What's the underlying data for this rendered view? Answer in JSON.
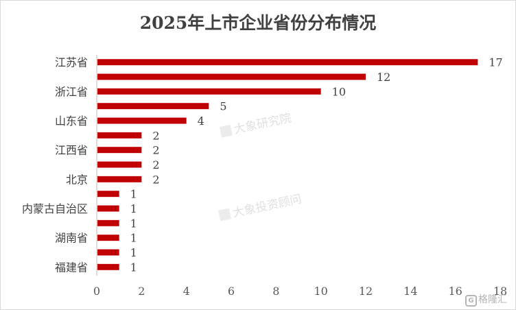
{
  "chart_data": {
    "type": "bar",
    "orientation": "horizontal",
    "title": "2025年上市企业省份分布情况",
    "categories": [
      "江苏省",
      "",
      "浙江省",
      "",
      "山东省",
      "",
      "江西省",
      "",
      "北京",
      "",
      "内蒙古自治区",
      "",
      "湖南省",
      "",
      "福建省"
    ],
    "values": [
      17,
      12,
      10,
      5,
      4,
      2,
      2,
      2,
      2,
      1,
      1,
      1,
      1,
      1,
      1
    ],
    "xlim": [
      0,
      18
    ],
    "xticks": [
      0,
      2,
      4,
      6,
      8,
      10,
      12,
      14,
      16,
      18
    ],
    "xlabel": "",
    "ylabel": "",
    "grid": false,
    "legend": "none",
    "bar_color": "#c00000"
  },
  "watermarks": [
    "大象研究院",
    "大象投资顾问"
  ],
  "logo": {
    "glyph": "G",
    "text": "格隆汇"
  }
}
